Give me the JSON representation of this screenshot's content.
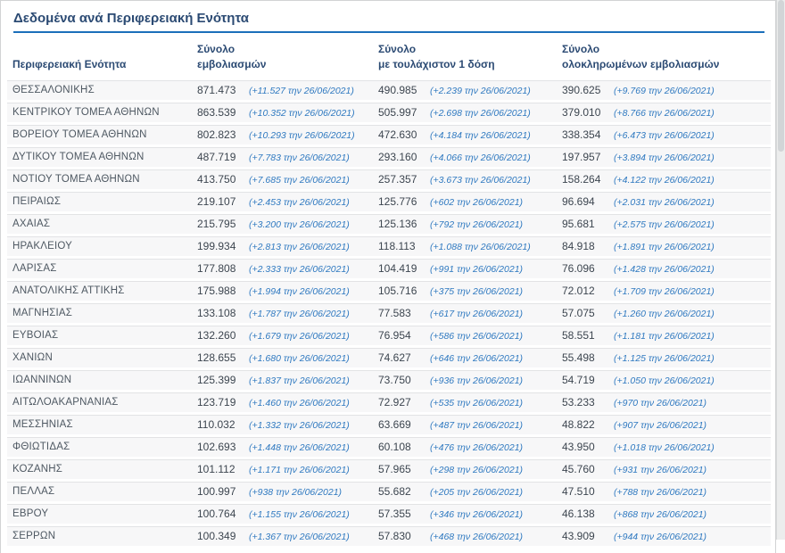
{
  "title": "Δεδομένα ανά Περιφερειακή Ενότητα",
  "table": {
    "headers": {
      "region": "Περιφερειακή Ενότητα",
      "total": {
        "line1": "Σύνολο",
        "line2": "εμβολιασμών"
      },
      "dose1": {
        "line1": "Σύνολο",
        "line2": "με τουλάχιστον 1 δόση"
      },
      "completed": {
        "line1": "Σύνολο",
        "line2": "ολοκληρωμένων εμβολιασμών"
      }
    },
    "rows": [
      {
        "region": "ΘΕΣΣΑΛΟΝΙΚΗΣ",
        "total": "871.473",
        "total_delta": "(+11.527 την 26/06/2021)",
        "dose1": "490.985",
        "dose1_delta": "(+2.239 την 26/06/2021)",
        "completed": "390.625",
        "completed_delta": "(+9.769 την 26/06/2021)"
      },
      {
        "region": "ΚΕΝΤΡΙΚΟΥ ΤΟΜΕΑ ΑΘΗΝΩΝ",
        "total": "863.539",
        "total_delta": "(+10.352 την 26/06/2021)",
        "dose1": "505.997",
        "dose1_delta": "(+2.698 την 26/06/2021)",
        "completed": "379.010",
        "completed_delta": "(+8.766 την 26/06/2021)"
      },
      {
        "region": "ΒΟΡΕΙΟΥ ΤΟΜΕΑ ΑΘΗΝΩΝ",
        "total": "802.823",
        "total_delta": "(+10.293 την 26/06/2021)",
        "dose1": "472.630",
        "dose1_delta": "(+4.184 την 26/06/2021)",
        "completed": "338.354",
        "completed_delta": "(+6.473 την 26/06/2021)"
      },
      {
        "region": "ΔΥΤΙΚΟΥ ΤΟΜΕΑ ΑΘΗΝΩΝ",
        "total": "487.719",
        "total_delta": "(+7.783 την 26/06/2021)",
        "dose1": "293.160",
        "dose1_delta": "(+4.066 την 26/06/2021)",
        "completed": "197.957",
        "completed_delta": "(+3.894 την 26/06/2021)"
      },
      {
        "region": "ΝΟΤΙΟΥ ΤΟΜΕΑ ΑΘΗΝΩΝ",
        "total": "413.750",
        "total_delta": "(+7.685 την 26/06/2021)",
        "dose1": "257.357",
        "dose1_delta": "(+3.673 την 26/06/2021)",
        "completed": "158.264",
        "completed_delta": "(+4.122 την 26/06/2021)"
      },
      {
        "region": "ΠΕΙΡΑΙΩΣ",
        "total": "219.107",
        "total_delta": "(+2.453 την 26/06/2021)",
        "dose1": "125.776",
        "dose1_delta": "(+602 την 26/06/2021)",
        "completed": "96.694",
        "completed_delta": "(+2.031 την 26/06/2021)"
      },
      {
        "region": "ΑΧΑΪΑΣ",
        "total": "215.795",
        "total_delta": "(+3.200 την 26/06/2021)",
        "dose1": "125.136",
        "dose1_delta": "(+792 την 26/06/2021)",
        "completed": "95.681",
        "completed_delta": "(+2.575 την 26/06/2021)"
      },
      {
        "region": "ΗΡΑΚΛΕΙΟΥ",
        "total": "199.934",
        "total_delta": "(+2.813 την 26/06/2021)",
        "dose1": "118.113",
        "dose1_delta": "(+1.088 την 26/06/2021)",
        "completed": "84.918",
        "completed_delta": "(+1.891 την 26/06/2021)"
      },
      {
        "region": "ΛΑΡΙΣΑΣ",
        "total": "177.808",
        "total_delta": "(+2.333 την 26/06/2021)",
        "dose1": "104.419",
        "dose1_delta": "(+991 την 26/06/2021)",
        "completed": "76.096",
        "completed_delta": "(+1.428 την 26/06/2021)"
      },
      {
        "region": "ΑΝΑΤΟΛΙΚΗΣ ΑΤΤΙΚΗΣ",
        "total": "175.988",
        "total_delta": "(+1.994 την 26/06/2021)",
        "dose1": "105.716",
        "dose1_delta": "(+375 την 26/06/2021)",
        "completed": "72.012",
        "completed_delta": "(+1.709 την 26/06/2021)"
      },
      {
        "region": "ΜΑΓΝΗΣΙΑΣ",
        "total": "133.108",
        "total_delta": "(+1.787 την 26/06/2021)",
        "dose1": "77.583",
        "dose1_delta": "(+617 την 26/06/2021)",
        "completed": "57.075",
        "completed_delta": "(+1.260 την 26/06/2021)"
      },
      {
        "region": "ΕΥΒΟΙΑΣ",
        "total": "132.260",
        "total_delta": "(+1.679 την 26/06/2021)",
        "dose1": "76.954",
        "dose1_delta": "(+586 την 26/06/2021)",
        "completed": "58.551",
        "completed_delta": "(+1.181 την 26/06/2021)"
      },
      {
        "region": "ΧΑΝΙΩΝ",
        "total": "128.655",
        "total_delta": "(+1.680 την 26/06/2021)",
        "dose1": "74.627",
        "dose1_delta": "(+646 την 26/06/2021)",
        "completed": "55.498",
        "completed_delta": "(+1.125 την 26/06/2021)"
      },
      {
        "region": "ΙΩΑΝΝΙΝΩΝ",
        "total": "125.399",
        "total_delta": "(+1.837 την 26/06/2021)",
        "dose1": "73.750",
        "dose1_delta": "(+936 την 26/06/2021)",
        "completed": "54.719",
        "completed_delta": "(+1.050 την 26/06/2021)"
      },
      {
        "region": "ΑΙΤΩΛΟΑΚΑΡΝΑΝΙΑΣ",
        "total": "123.719",
        "total_delta": "(+1.460 την 26/06/2021)",
        "dose1": "72.927",
        "dose1_delta": "(+535 την 26/06/2021)",
        "completed": "53.233",
        "completed_delta": "(+970 την 26/06/2021)"
      },
      {
        "region": "ΜΕΣΣΗΝΙΑΣ",
        "total": "110.032",
        "total_delta": "(+1.332 την 26/06/2021)",
        "dose1": "63.669",
        "dose1_delta": "(+487 την 26/06/2021)",
        "completed": "48.822",
        "completed_delta": "(+907 την 26/06/2021)"
      },
      {
        "region": "ΦΘΙΩΤΙΔΑΣ",
        "total": "102.693",
        "total_delta": "(+1.448 την 26/06/2021)",
        "dose1": "60.108",
        "dose1_delta": "(+476 την 26/06/2021)",
        "completed": "43.950",
        "completed_delta": "(+1.018 την 26/06/2021)"
      },
      {
        "region": "ΚΟΖΑΝΗΣ",
        "total": "101.112",
        "total_delta": "(+1.171 την 26/06/2021)",
        "dose1": "57.965",
        "dose1_delta": "(+298 την 26/06/2021)",
        "completed": "45.760",
        "completed_delta": "(+931 την 26/06/2021)"
      },
      {
        "region": "ΠΕΛΛΑΣ",
        "total": "100.997",
        "total_delta": "(+938 την 26/06/2021)",
        "dose1": "55.682",
        "dose1_delta": "(+205 την 26/06/2021)",
        "completed": "47.510",
        "completed_delta": "(+788 την 26/06/2021)"
      },
      {
        "region": "ΕΒΡΟΥ",
        "total": "100.764",
        "total_delta": "(+1.155 την 26/06/2021)",
        "dose1": "57.355",
        "dose1_delta": "(+346 την 26/06/2021)",
        "completed": "46.138",
        "completed_delta": "(+868 την 26/06/2021)"
      },
      {
        "region": "ΣΕΡΡΩΝ",
        "total": "100.349",
        "total_delta": "(+1.367 την 26/06/2021)",
        "dose1": "57.830",
        "dose1_delta": "(+468 την 26/06/2021)",
        "completed": "43.909",
        "completed_delta": "(+944 την 26/06/2021)"
      }
    ]
  },
  "colors": {
    "accent_blue": "#1b6fba",
    "heading_navy": "#2b4a73",
    "delta_blue": "#2f79c0",
    "number_dark": "#3c454f",
    "region_gray": "#4e5862",
    "row_bg": "#f7f7f8",
    "row_border": "#e2e3e5",
    "card_border": "#d2d3d4"
  }
}
